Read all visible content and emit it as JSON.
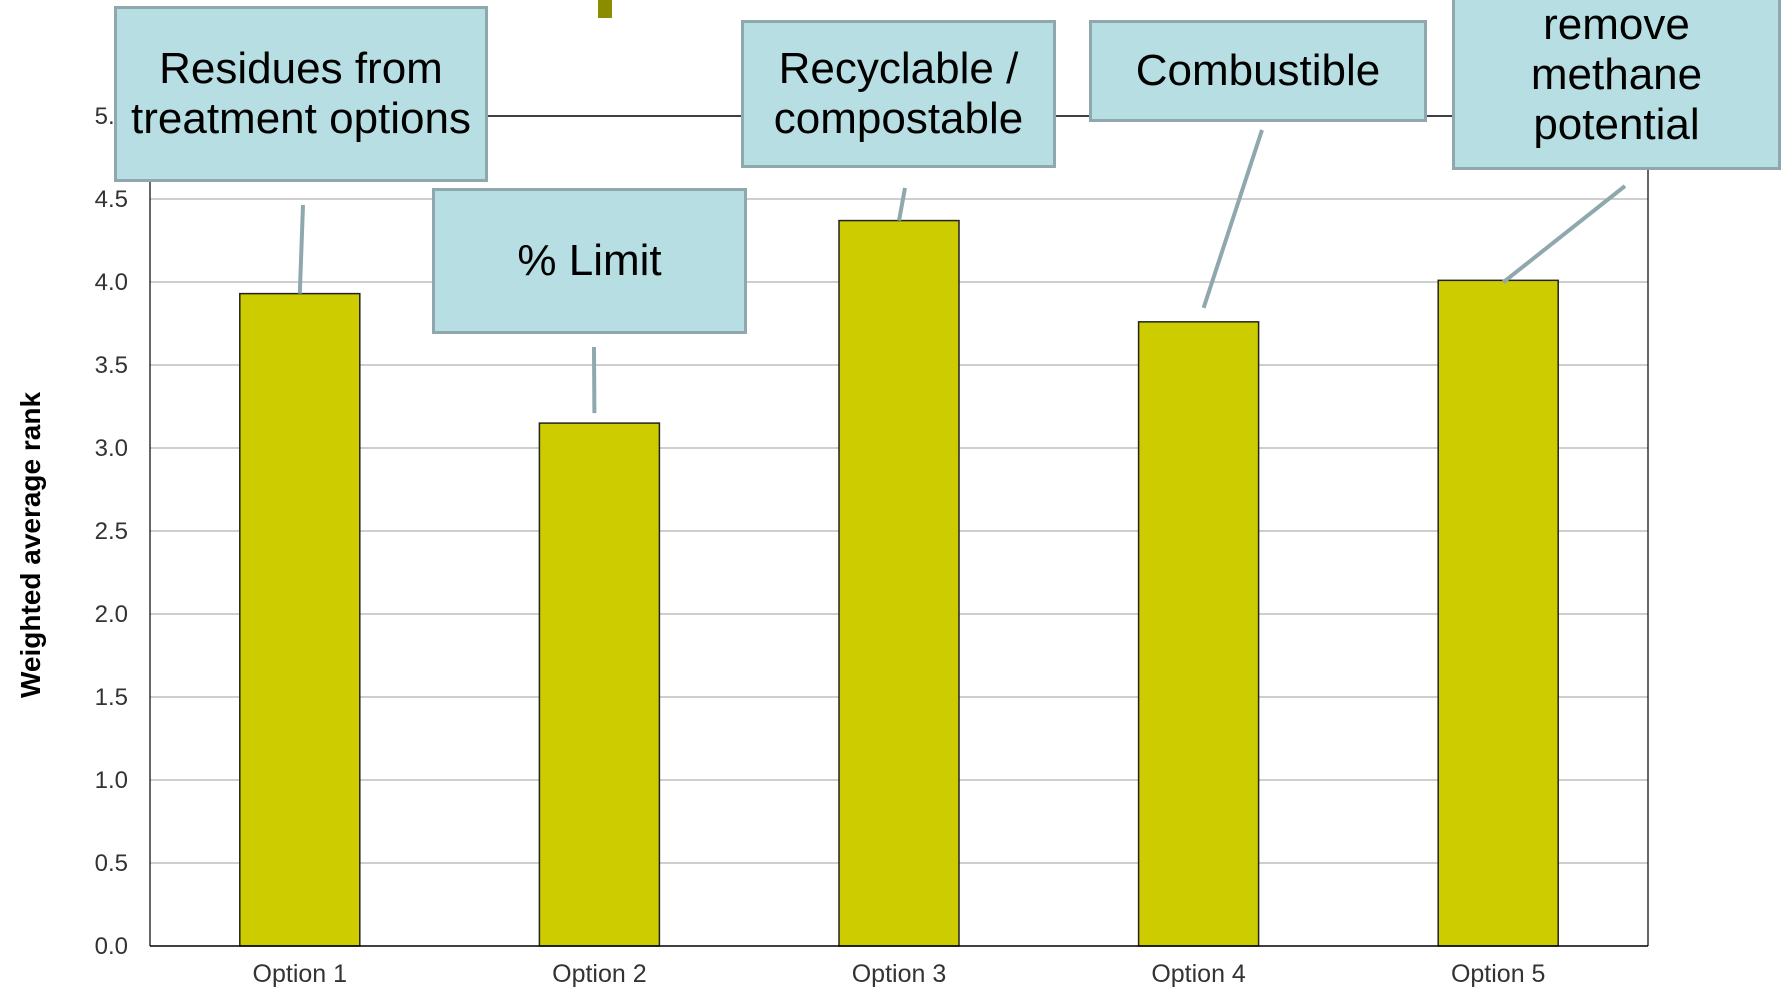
{
  "chart_data": {
    "type": "bar",
    "categories": [
      "Option 1",
      "Option 2",
      "Option 3",
      "Option 4",
      "Option 5"
    ],
    "values": [
      3.93,
      3.15,
      4.37,
      3.76,
      4.01
    ],
    "ylabel": "Weighted average rank",
    "ylim": [
      0,
      5
    ],
    "yticks": [
      "0.0",
      "0.5",
      "1.0",
      "1.5",
      "2.0",
      "2.5",
      "3.0",
      "3.5",
      "4.0",
      "4.5",
      "5.0"
    ],
    "grid": true,
    "bar_color": "#cccc00",
    "annotations": [
      {
        "category": "Option 1",
        "text": "Residues from treatment options"
      },
      {
        "category": "Option 2",
        "text": "% Limit"
      },
      {
        "category": "Option 3",
        "text": "Recyclable / compostable"
      },
      {
        "category": "Option 4",
        "text": "Combustible"
      },
      {
        "category": "Option 5",
        "text": "remove methane potential"
      }
    ]
  },
  "colors": {
    "callout_fill": "#b7dfe3",
    "callout_border": "#8ea8ae",
    "accent": "#8c8c00"
  }
}
